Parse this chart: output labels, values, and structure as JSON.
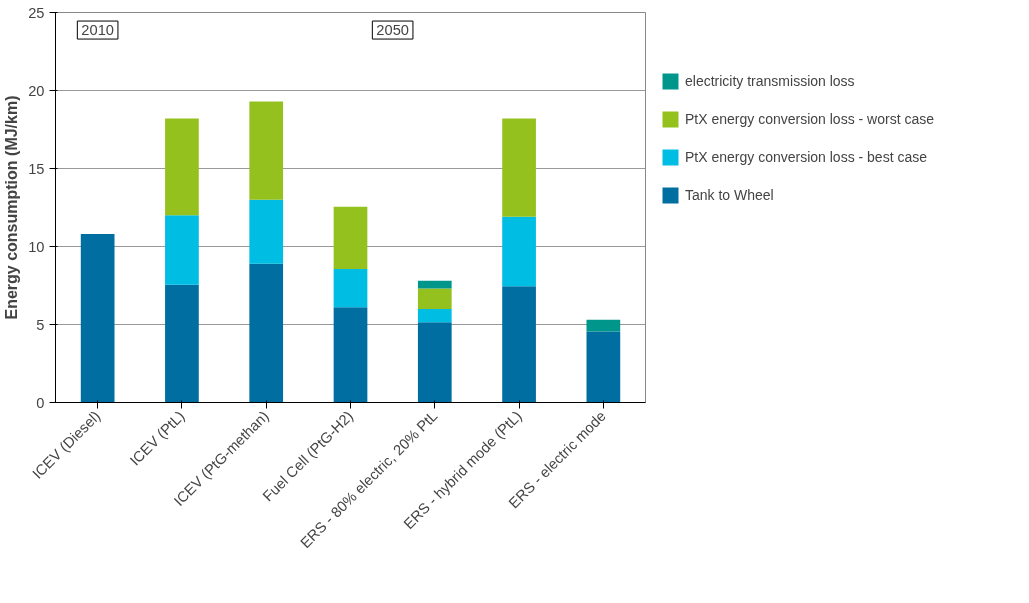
{
  "chart_data": {
    "type": "bar",
    "stacked": true,
    "ylabel": "Energy consumption (MJ/km)",
    "categories": [
      "ICEV (Diesel)",
      "ICEV (PtL)",
      "ICEV (PtG-methan)",
      "Fuel Cell (PtG-H2)",
      "ERS - 80% electric, 20% PtL",
      "ERS - hybrid mode (PtL)",
      "ERS - electric mode"
    ],
    "series": [
      {
        "name": "Tank to Wheel",
        "color": "#006ea0",
        "values": [
          10.8,
          7.55,
          8.9,
          6.1,
          5.15,
          7.45,
          4.55
        ]
      },
      {
        "name": "PtX energy conversion loss - best case",
        "color": "#00bde3",
        "values": [
          null,
          4.45,
          4.1,
          2.45,
          0.85,
          4.45,
          null
        ]
      },
      {
        "name": "PtX energy conversion loss - worst case",
        "color": "#95c11f",
        "values": [
          null,
          6.2,
          6.3,
          4.0,
          1.3,
          6.3,
          null
        ]
      },
      {
        "name": "electricity transmission loss",
        "color": "#00968c",
        "values": [
          null,
          null,
          null,
          null,
          0.5,
          null,
          0.75
        ]
      }
    ],
    "ylim": [
      0,
      25
    ],
    "yticks": [
      0,
      5,
      10,
      15,
      20,
      25
    ],
    "grid": "y",
    "legend": "right",
    "annotations": [
      "2010",
      "2050"
    ]
  }
}
